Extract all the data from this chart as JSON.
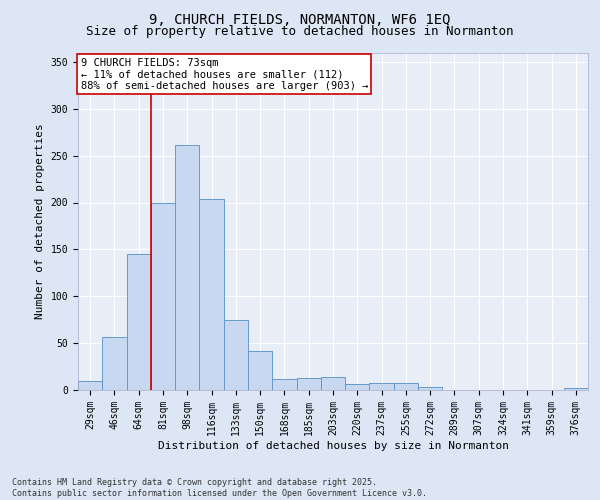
{
  "title_line1": "9, CHURCH FIELDS, NORMANTON, WF6 1EQ",
  "title_line2": "Size of property relative to detached houses in Normanton",
  "xlabel": "Distribution of detached houses by size in Normanton",
  "ylabel": "Number of detached properties",
  "bar_color": "#c8d8f0",
  "bar_edge_color": "#6699cc",
  "background_color": "#e8eef8",
  "grid_color": "#ffffff",
  "vline_color": "#cc0000",
  "vline_x": 2.5,
  "annotation_text": "9 CHURCH FIELDS: 73sqm\n← 11% of detached houses are smaller (112)\n88% of semi-detached houses are larger (903) →",
  "annotation_box_color": "#ffffff",
  "annotation_box_edge": "#cc0000",
  "categories": [
    "29sqm",
    "46sqm",
    "64sqm",
    "81sqm",
    "98sqm",
    "116sqm",
    "133sqm",
    "150sqm",
    "168sqm",
    "185sqm",
    "203sqm",
    "220sqm",
    "237sqm",
    "255sqm",
    "272sqm",
    "289sqm",
    "307sqm",
    "324sqm",
    "341sqm",
    "359sqm",
    "376sqm"
  ],
  "values": [
    10,
    57,
    145,
    200,
    261,
    204,
    75,
    42,
    12,
    13,
    14,
    6,
    7,
    7,
    3,
    0,
    0,
    0,
    0,
    0,
    2
  ],
  "ylim": [
    0,
    360
  ],
  "yticks": [
    0,
    50,
    100,
    150,
    200,
    250,
    300,
    350
  ],
  "footnote": "Contains HM Land Registry data © Crown copyright and database right 2025.\nContains public sector information licensed under the Open Government Licence v3.0.",
  "title_fontsize": 10,
  "subtitle_fontsize": 9,
  "axis_label_fontsize": 8,
  "tick_fontsize": 7,
  "annotation_fontsize": 7.5,
  "footnote_fontsize": 6
}
